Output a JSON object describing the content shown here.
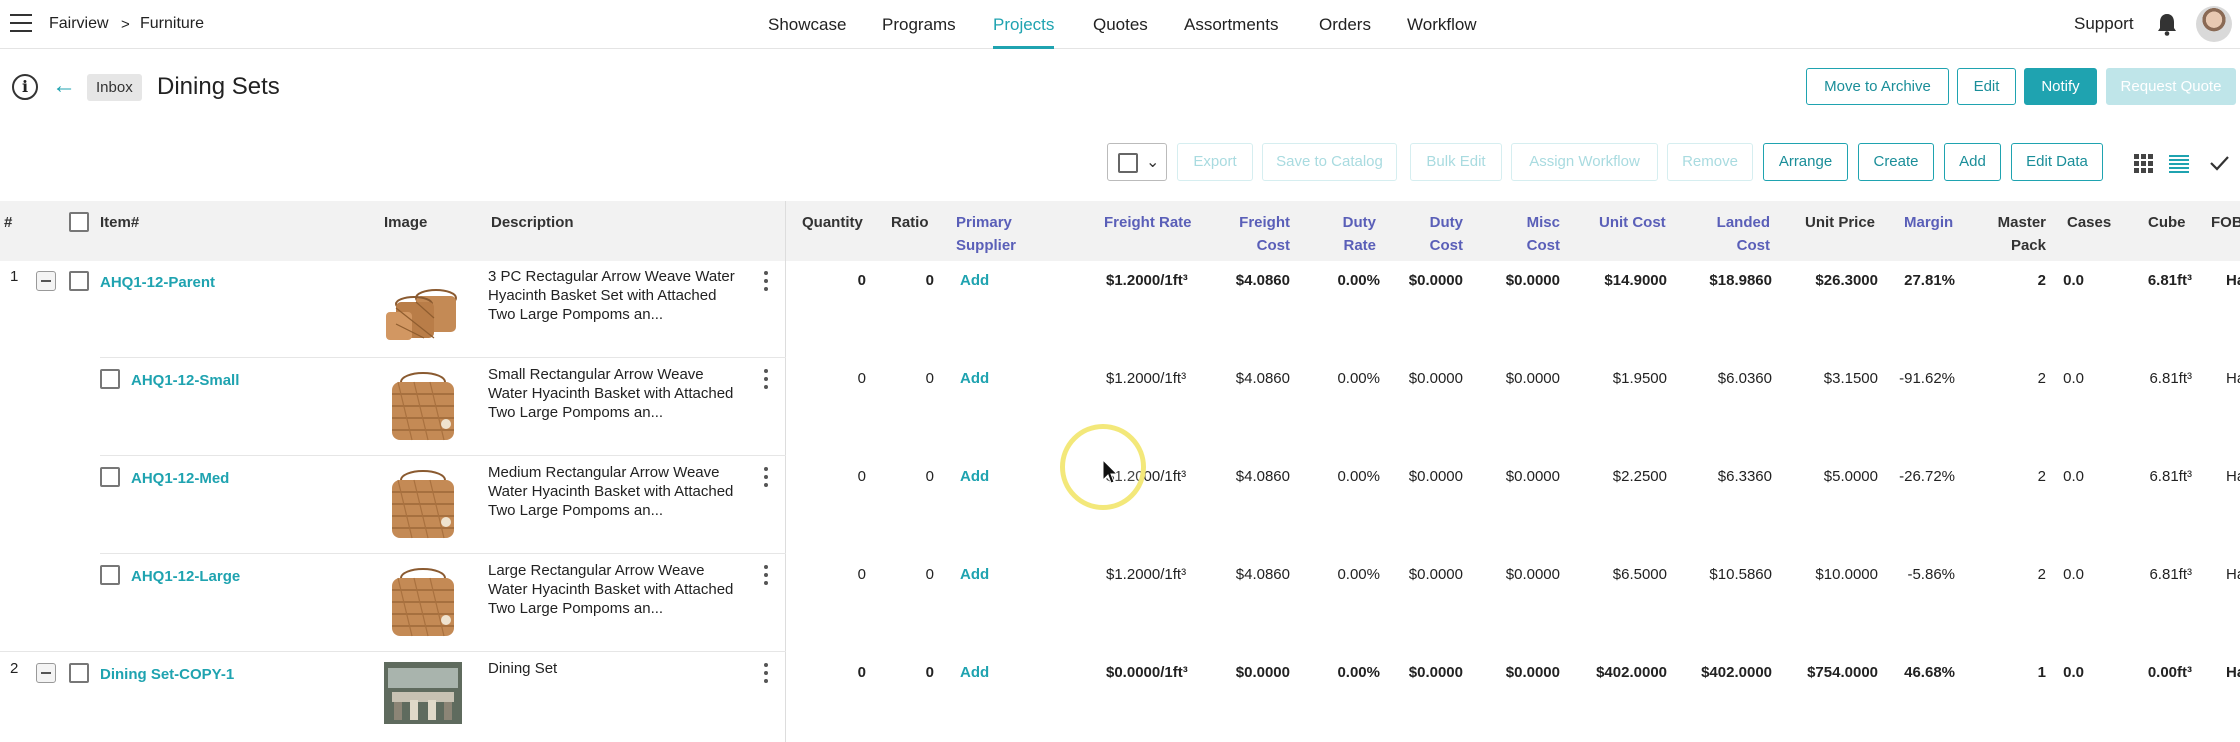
{
  "breadcrumb": {
    "home": "Fairview",
    "separator": ">",
    "current": "Furniture"
  },
  "nav": [
    {
      "label": "Showcase",
      "active": false
    },
    {
      "label": "Programs",
      "active": false
    },
    {
      "label": "Projects",
      "active": true
    },
    {
      "label": "Quotes",
      "active": false
    },
    {
      "label": "Assortments",
      "active": false
    },
    {
      "label": "Orders",
      "active": false
    },
    {
      "label": "Workflow",
      "active": false
    }
  ],
  "support_label": "Support",
  "titlebar": {
    "inbox_label": "Inbox",
    "title": "Dining Sets"
  },
  "actions": {
    "archive": "Move to Archive",
    "edit": "Edit",
    "notify": "Notify",
    "request_quote": "Request Quote"
  },
  "toolbar": {
    "export": "Export",
    "save_to_catalog": "Save to Catalog",
    "bulk_edit": "Bulk Edit",
    "assign_workflow": "Assign Workflow",
    "remove": "Remove",
    "arrange": "Arrange",
    "create": "Create",
    "add": "Add",
    "edit_data": "Edit Data"
  },
  "columns": {
    "num": "#",
    "item": "Item#",
    "image": "Image",
    "description": "Description",
    "quantity": "Quantity",
    "ratio": "Ratio",
    "primary_supplier": [
      "Primary",
      "Supplier"
    ],
    "freight_rate": "Freight Rate",
    "freight_cost": [
      "Freight",
      "Cost"
    ],
    "duty_rate": [
      "Duty",
      "Rate"
    ],
    "duty_cost": [
      "Duty",
      "Cost"
    ],
    "misc_cost": [
      "Misc",
      "Cost"
    ],
    "unit_cost": "Unit Cost",
    "landed_cost": [
      "Landed",
      "Cost"
    ],
    "unit_price": "Unit Price",
    "margin": "Margin",
    "master_pack": [
      "Master",
      "Pack"
    ],
    "cases": "Cases",
    "cube": "Cube",
    "fob": "FOB"
  },
  "rows": [
    {
      "num": "1",
      "item": "AHQ1-12-Parent",
      "desc": "3 PC Rectagular Arrow Weave Water Hyacinth Basket Set with Attached Two Large Pompoms an...",
      "qty": "0",
      "ratio": "0",
      "supplier": "Add",
      "freight_rate": "$1.2000/1ft³",
      "freight_cost": "$4.0860",
      "duty_rate": "0.00%",
      "duty_cost": "$0.0000",
      "misc_cost": "$0.0000",
      "unit_cost": "$14.9000",
      "landed_cost": "$18.9860",
      "unit_price": "$26.3000",
      "margin": "27.81%",
      "master_pack": "2",
      "cases": "0.0",
      "cube": "6.81ft³",
      "fob": "Ha"
    },
    {
      "num": "",
      "item": "AHQ1-12-Small",
      "desc": "Small Rectangular Arrow Weave Water Hyacinth Basket with Attached Two Large Pompoms an...",
      "qty": "0",
      "ratio": "0",
      "supplier": "Add",
      "freight_rate": "$1.2000/1ft³",
      "freight_cost": "$4.0860",
      "duty_rate": "0.00%",
      "duty_cost": "$0.0000",
      "misc_cost": "$0.0000",
      "unit_cost": "$1.9500",
      "landed_cost": "$6.0360",
      "unit_price": "$3.1500",
      "margin": "-91.62%",
      "master_pack": "2",
      "cases": "0.0",
      "cube": "6.81ft³",
      "fob": "Ha"
    },
    {
      "num": "",
      "item": "AHQ1-12-Med",
      "desc": "Medium Rectangular Arrow Weave Water Hyacinth Basket with Attached Two Large Pompoms an...",
      "qty": "0",
      "ratio": "0",
      "supplier": "Add",
      "freight_rate": "$1.2000/1ft³",
      "freight_cost": "$4.0860",
      "duty_rate": "0.00%",
      "duty_cost": "$0.0000",
      "misc_cost": "$0.0000",
      "unit_cost": "$2.2500",
      "landed_cost": "$6.3360",
      "unit_price": "$5.0000",
      "margin": "-26.72%",
      "master_pack": "2",
      "cases": "0.0",
      "cube": "6.81ft³",
      "fob": "Ha"
    },
    {
      "num": "",
      "item": "AHQ1-12-Large",
      "desc": "Large Rectangular Arrow Weave Water Hyacinth Basket with Attached Two Large Pompoms an...",
      "qty": "0",
      "ratio": "0",
      "supplier": "Add",
      "freight_rate": "$1.2000/1ft³",
      "freight_cost": "$4.0860",
      "duty_rate": "0.00%",
      "duty_cost": "$0.0000",
      "misc_cost": "$0.0000",
      "unit_cost": "$6.5000",
      "landed_cost": "$10.5860",
      "unit_price": "$10.0000",
      "margin": "-5.86%",
      "master_pack": "2",
      "cases": "0.0",
      "cube": "6.81ft³",
      "fob": "Ha"
    },
    {
      "num": "2",
      "item": "Dining Set-COPY-1",
      "desc": "Dining Set",
      "qty": "0",
      "ratio": "0",
      "supplier": "Add",
      "freight_rate": "$0.0000/1ft³",
      "freight_cost": "$0.0000",
      "duty_rate": "0.00%",
      "duty_cost": "$0.0000",
      "misc_cost": "$0.0000",
      "unit_cost": "$402.0000",
      "landed_cost": "$402.0000",
      "unit_price": "$754.0000",
      "margin": "46.68%",
      "master_pack": "1",
      "cases": "0.0",
      "cube": "0.00ft³",
      "fob": "Ha"
    }
  ],
  "colors": {
    "accent": "#1fa3b0",
    "blue_header": "#5a5fb8"
  }
}
